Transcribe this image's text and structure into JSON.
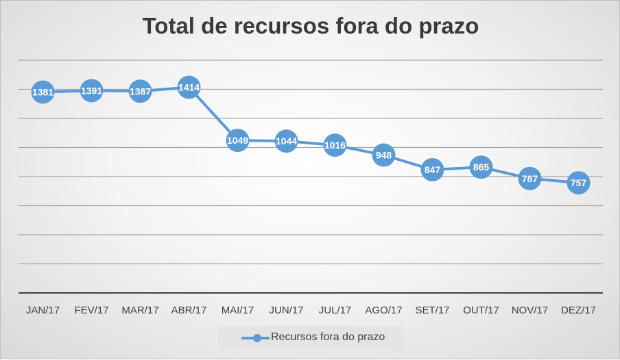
{
  "chart_data": {
    "type": "line",
    "title": "Total de recursos fora do prazo",
    "categories": [
      "JAN/17",
      "FEV/17",
      "MAR/17",
      "ABR/17",
      "MAI/17",
      "JUN/17",
      "JUL/17",
      "AGO/17",
      "SET/17",
      "OUT/17",
      "NOV/17",
      "DEZ/17"
    ],
    "series": [
      {
        "name": "Recursos fora do prazo",
        "values": [
          1381,
          1391,
          1387,
          1414,
          1049,
          1044,
          1016,
          948,
          847,
          865,
          787,
          757
        ],
        "color": "#5b9bd5"
      }
    ],
    "ylim": [
      0,
      1600
    ],
    "ystep": 200,
    "grid": true,
    "show_y_tick_labels": false,
    "legend_position": "bottom",
    "xlabel": "",
    "ylabel": ""
  }
}
